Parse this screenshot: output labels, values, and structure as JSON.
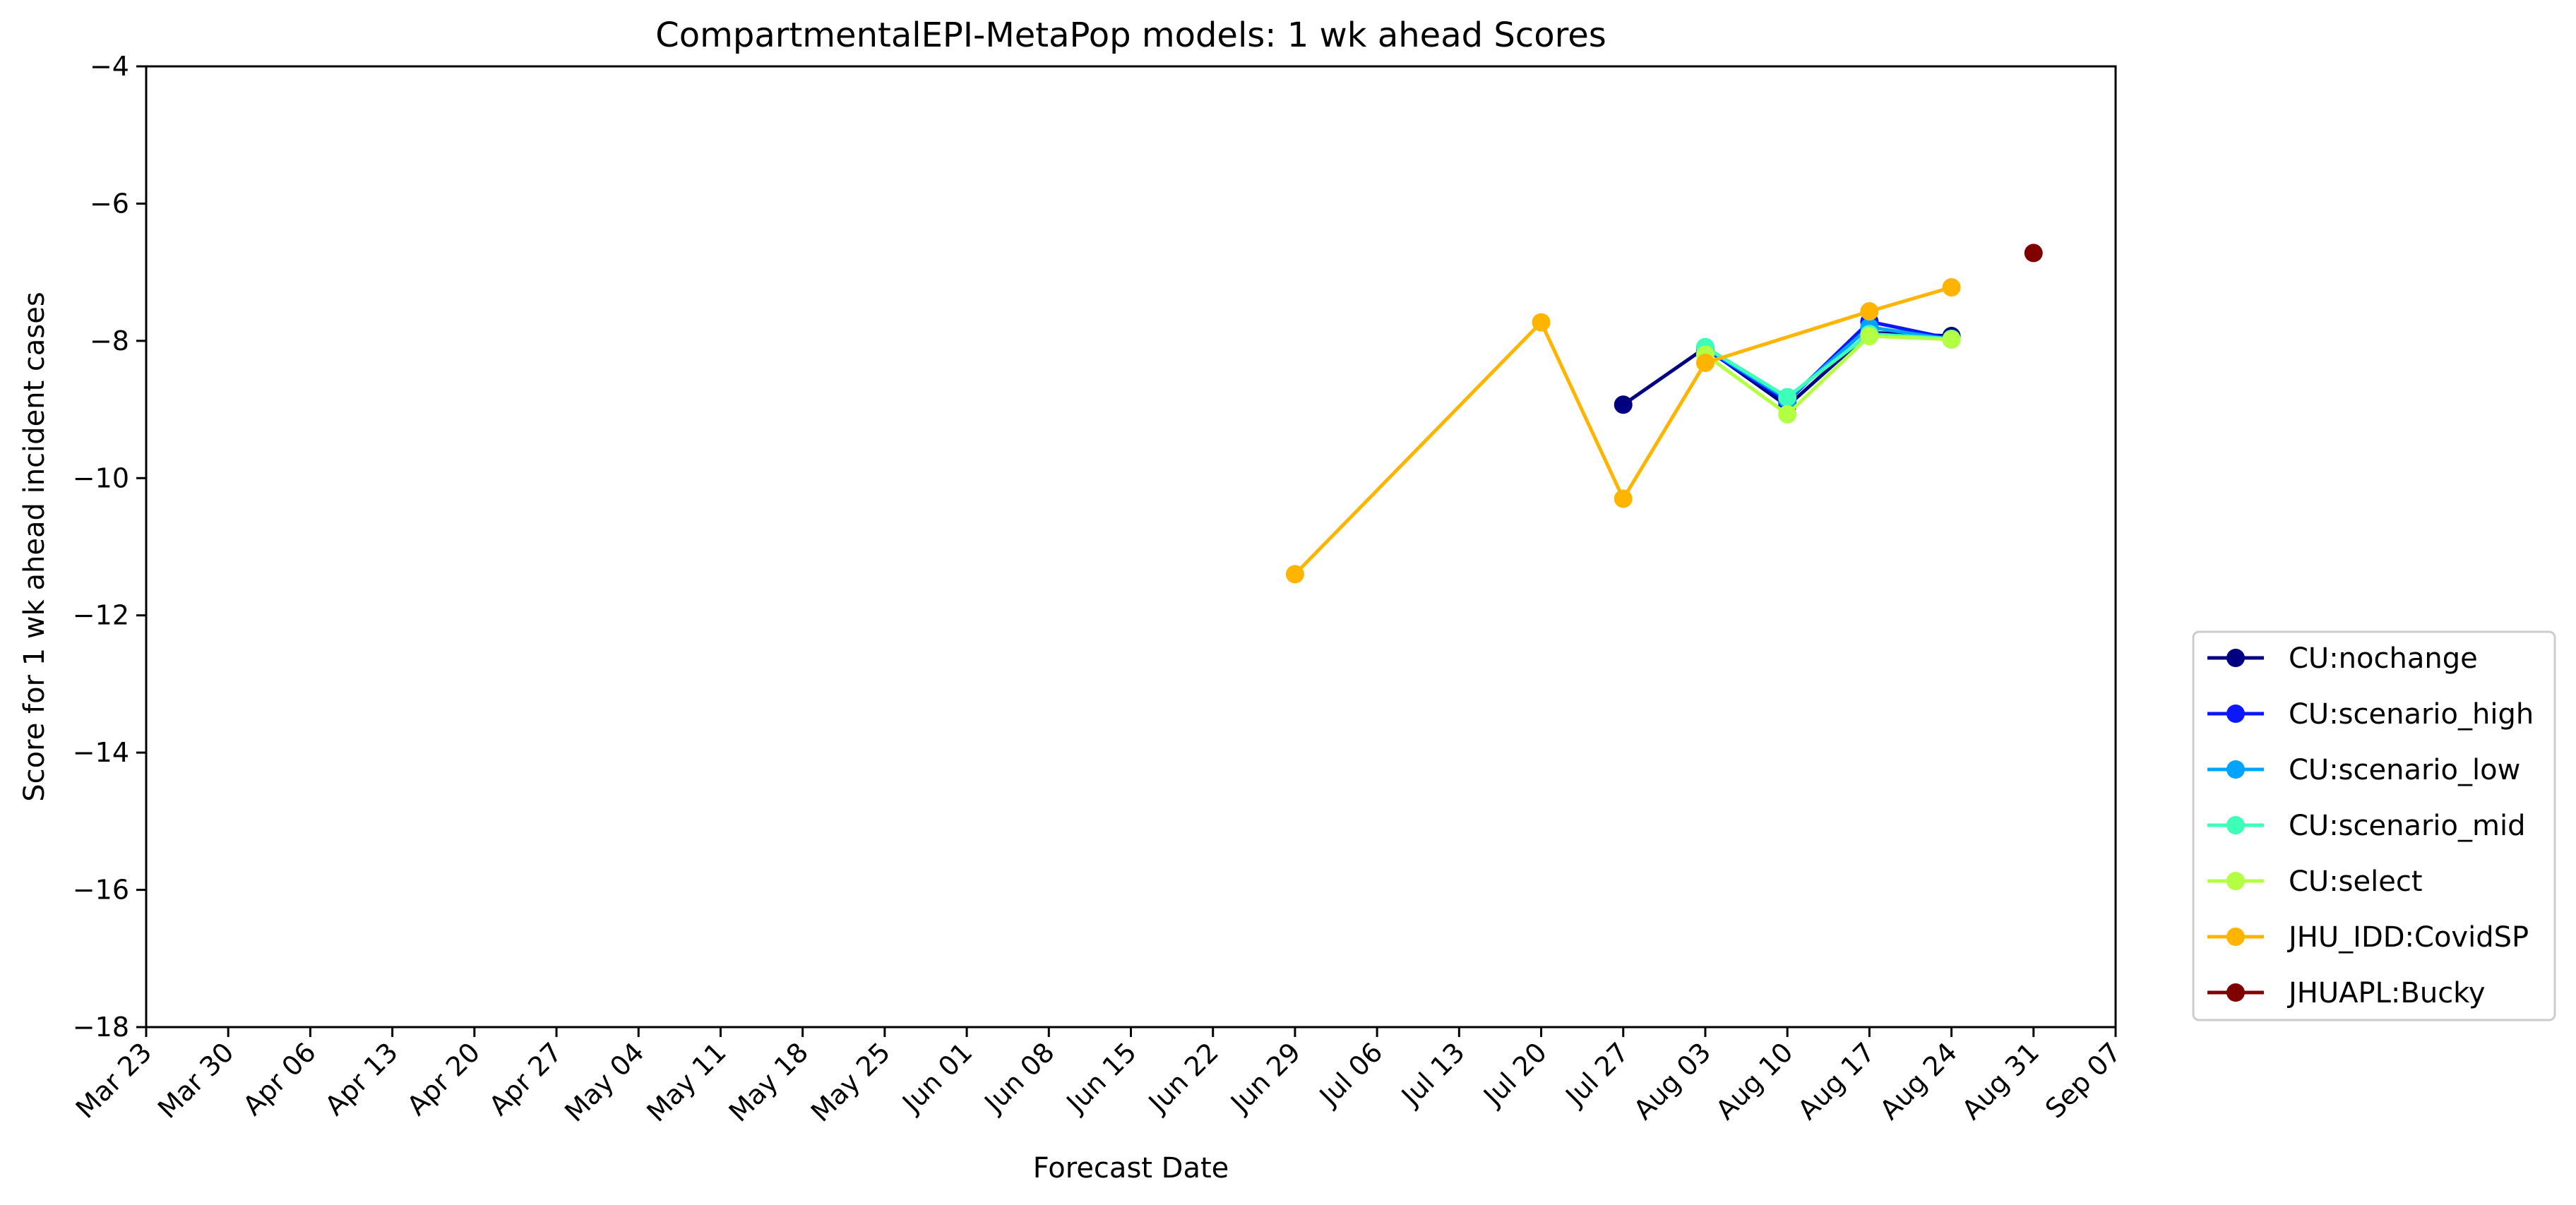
{
  "chart_data": {
    "type": "line",
    "title": "CompartmentalEPI-MetaPop models: 1 wk ahead Scores",
    "xlabel": "Forecast Date",
    "ylabel": "Score for 1 wk ahead incident cases",
    "ylim": [
      -18,
      -4
    ],
    "yticks": [
      -4,
      -6,
      -8,
      -10,
      -12,
      -14,
      -16,
      -18
    ],
    "ytick_labels": [
      "−4",
      "−6",
      "−8",
      "−10",
      "−12",
      "−14",
      "−16",
      "−18"
    ],
    "x_categories": [
      "Mar 23",
      "Mar 30",
      "Apr 06",
      "Apr 13",
      "Apr 20",
      "Apr 27",
      "May 04",
      "May 11",
      "May 18",
      "May 25",
      "Jun 01",
      "Jun 08",
      "Jun 15",
      "Jun 22",
      "Jun 29",
      "Jul 06",
      "Jul 13",
      "Jul 20",
      "Jul 27",
      "Aug 03",
      "Aug 10",
      "Aug 17",
      "Aug 24",
      "Aug 31",
      "Sep 07"
    ],
    "grid": false,
    "legend_position": "outside-right-bottom",
    "series": [
      {
        "name": "CU:nochange",
        "color": "#000080",
        "points": [
          {
            "x": "Jul 27",
            "y": -8.93
          },
          {
            "x": "Aug 03",
            "y": -8.1
          },
          {
            "x": "Aug 10",
            "y": -8.95
          },
          {
            "x": "Aug 17",
            "y": -7.88
          },
          {
            "x": "Aug 24",
            "y": -7.93
          }
        ]
      },
      {
        "name": "CU:scenario_high",
        "color": "#0b18ff",
        "points": [
          {
            "x": "Aug 03",
            "y": -8.12
          },
          {
            "x": "Aug 10",
            "y": -8.88
          },
          {
            "x": "Aug 17",
            "y": -7.72
          },
          {
            "x": "Aug 24",
            "y": -7.97
          }
        ]
      },
      {
        "name": "CU:scenario_low",
        "color": "#00a4ff",
        "points": [
          {
            "x": "Aug 03",
            "y": -8.1
          },
          {
            "x": "Aug 10",
            "y": -8.85
          },
          {
            "x": "Aug 17",
            "y": -7.8
          },
          {
            "x": "Aug 24",
            "y": -7.98
          }
        ]
      },
      {
        "name": "CU:scenario_mid",
        "color": "#3dffba",
        "points": [
          {
            "x": "Aug 03",
            "y": -8.09
          },
          {
            "x": "Aug 10",
            "y": -8.82
          },
          {
            "x": "Aug 17",
            "y": -7.9
          },
          {
            "x": "Aug 24",
            "y": -7.97
          }
        ]
      },
      {
        "name": "CU:select",
        "color": "#b2ff44",
        "points": [
          {
            "x": "Aug 03",
            "y": -8.2
          },
          {
            "x": "Aug 10",
            "y": -9.07
          },
          {
            "x": "Aug 17",
            "y": -7.93
          },
          {
            "x": "Aug 24",
            "y": -7.98
          }
        ]
      },
      {
        "name": "JHU_IDD:CovidSP",
        "color": "#ffb400",
        "points": [
          {
            "x": "Jun 29",
            "y": -11.4
          },
          {
            "x": "Jul 20",
            "y": -7.73
          },
          {
            "x": "Jul 27",
            "y": -10.3
          },
          {
            "x": "Aug 03",
            "y": -8.32
          },
          {
            "x": "Aug 17",
            "y": -7.57
          },
          {
            "x": "Aug 24",
            "y": -7.22
          }
        ]
      },
      {
        "name": "JHUAPL:Bucky",
        "color": "#800000",
        "points": [
          {
            "x": "Aug 31",
            "y": -6.72
          }
        ]
      }
    ]
  }
}
